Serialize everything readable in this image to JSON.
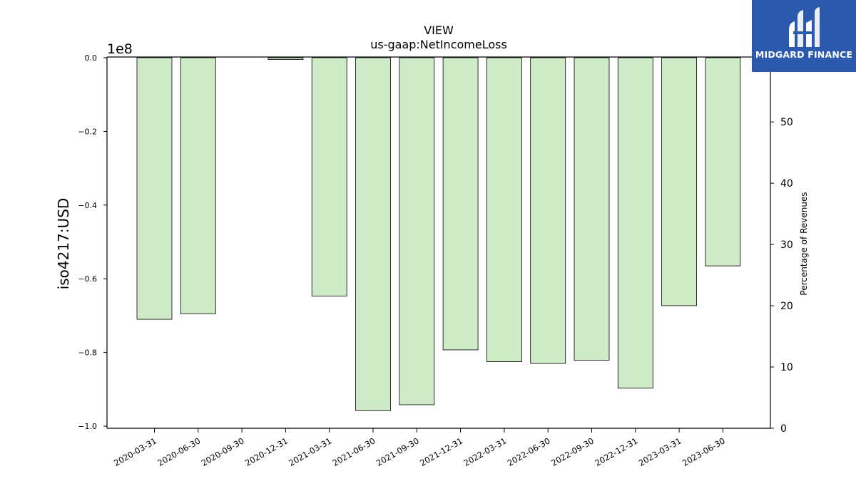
{
  "chart_data": {
    "type": "bar",
    "title": "VIEW",
    "subtitle": "us-gaap:NetIncomeLoss",
    "ylabel": "iso4217:USD",
    "y_offset_label": "1e8",
    "y2label": "Percentage of Revenues",
    "categories": [
      "2020-03-31",
      "2020-06-30",
      "2020-09-30",
      "2020-12-31",
      "2021-03-31",
      "2021-06-30",
      "2021-09-30",
      "2021-12-31",
      "2022-03-31",
      "2022-06-30",
      "2022-09-30",
      "2022-12-31",
      "2023-03-31",
      "2023-06-30"
    ],
    "series": [
      {
        "values": [
          -71000000,
          -69500000,
          0,
          -500000,
          -64700000,
          -95800000,
          -94200000,
          -79300000,
          -82500000,
          -83000000,
          -82100000,
          -89700000,
          -67300000,
          -56500000
        ]
      }
    ],
    "ylim": [
      -100000000,
      0
    ],
    "yticks": [
      "0.0",
      "−0.2",
      "−0.4",
      "−0.6",
      "−0.8",
      "−1.0"
    ],
    "y2lim": [
      0,
      60.6
    ],
    "y2ticks": [
      "0",
      "10",
      "20",
      "30",
      "40",
      "50"
    ],
    "bar_color": "#ceeac6",
    "bar_edge_color": "#000000",
    "grid": false,
    "legend": "none"
  },
  "logo": {
    "name": "MIDGARD FINANCE",
    "background": "#2b5aad"
  }
}
